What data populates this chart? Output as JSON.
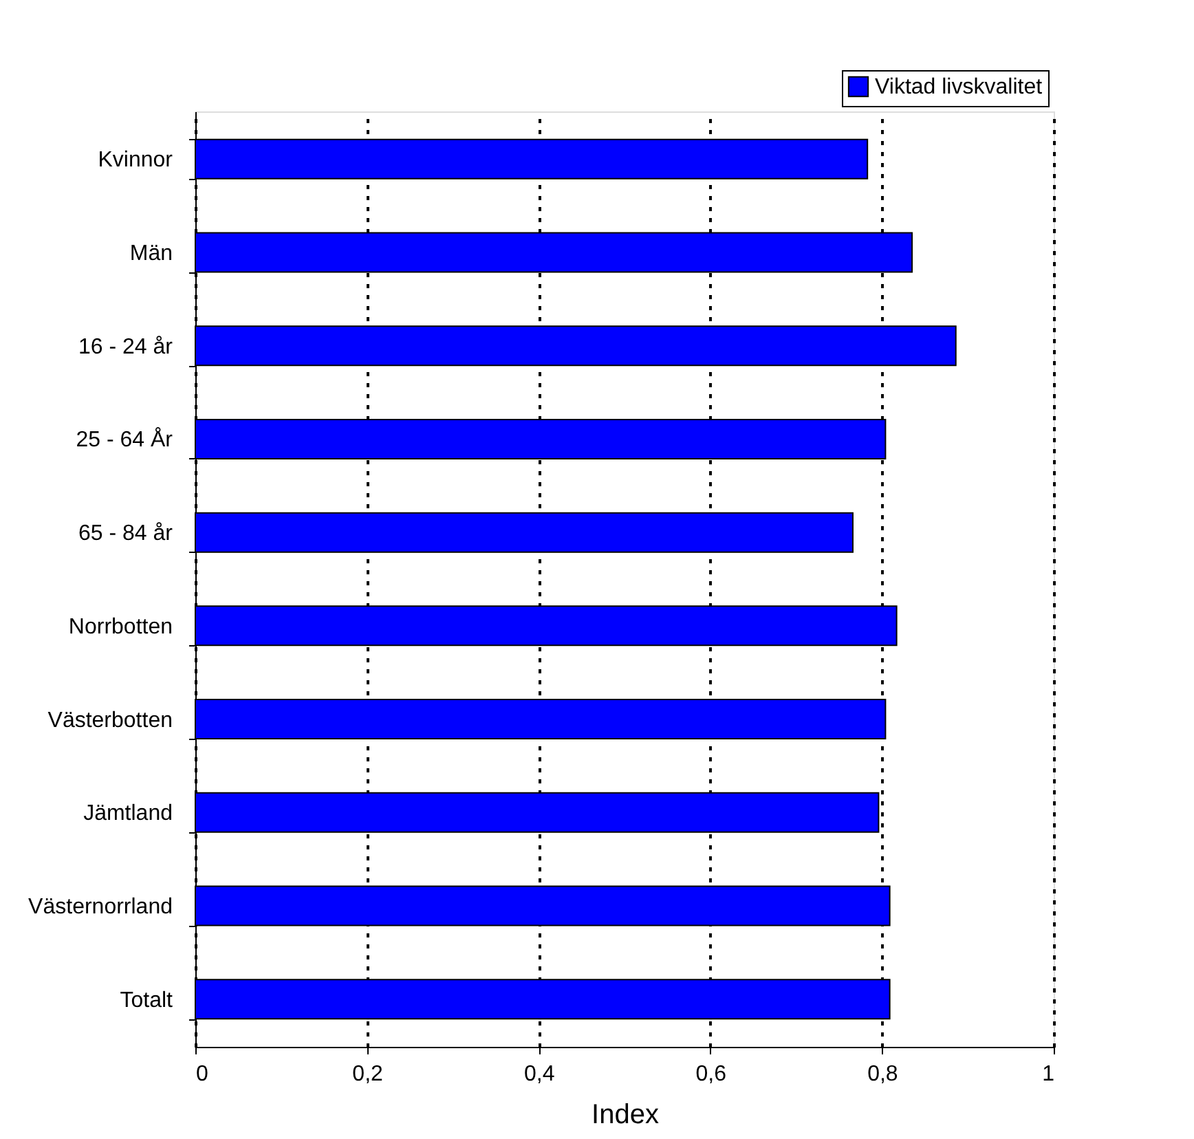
{
  "chart_data": {
    "type": "bar",
    "orientation": "horizontal",
    "xlabel": "Index",
    "categories": [
      "Kvinnor",
      "Män",
      "16 - 24 år",
      "25 - 64 År",
      "65 - 84 år",
      "Norrbotten",
      "Västerbotten",
      "Jämtland",
      "Västernorrland",
      "Totalt"
    ],
    "series": [
      {
        "name": "Viktad livskvalitet",
        "color": "#0000ff",
        "values": [
          0.783,
          0.835,
          0.886,
          0.804,
          0.766,
          0.817,
          0.804,
          0.796,
          0.809,
          0.809
        ]
      }
    ],
    "xlim": [
      0,
      1
    ],
    "xticks": [
      0,
      {
        "value": 0.2,
        "label": "0,2"
      },
      {
        "value": 0.4,
        "label": "0,4"
      },
      {
        "value": 0.6,
        "label": "0,6"
      },
      {
        "value": 0.8,
        "label": "0,8"
      },
      1
    ],
    "grid": "x",
    "legend": "top right"
  }
}
